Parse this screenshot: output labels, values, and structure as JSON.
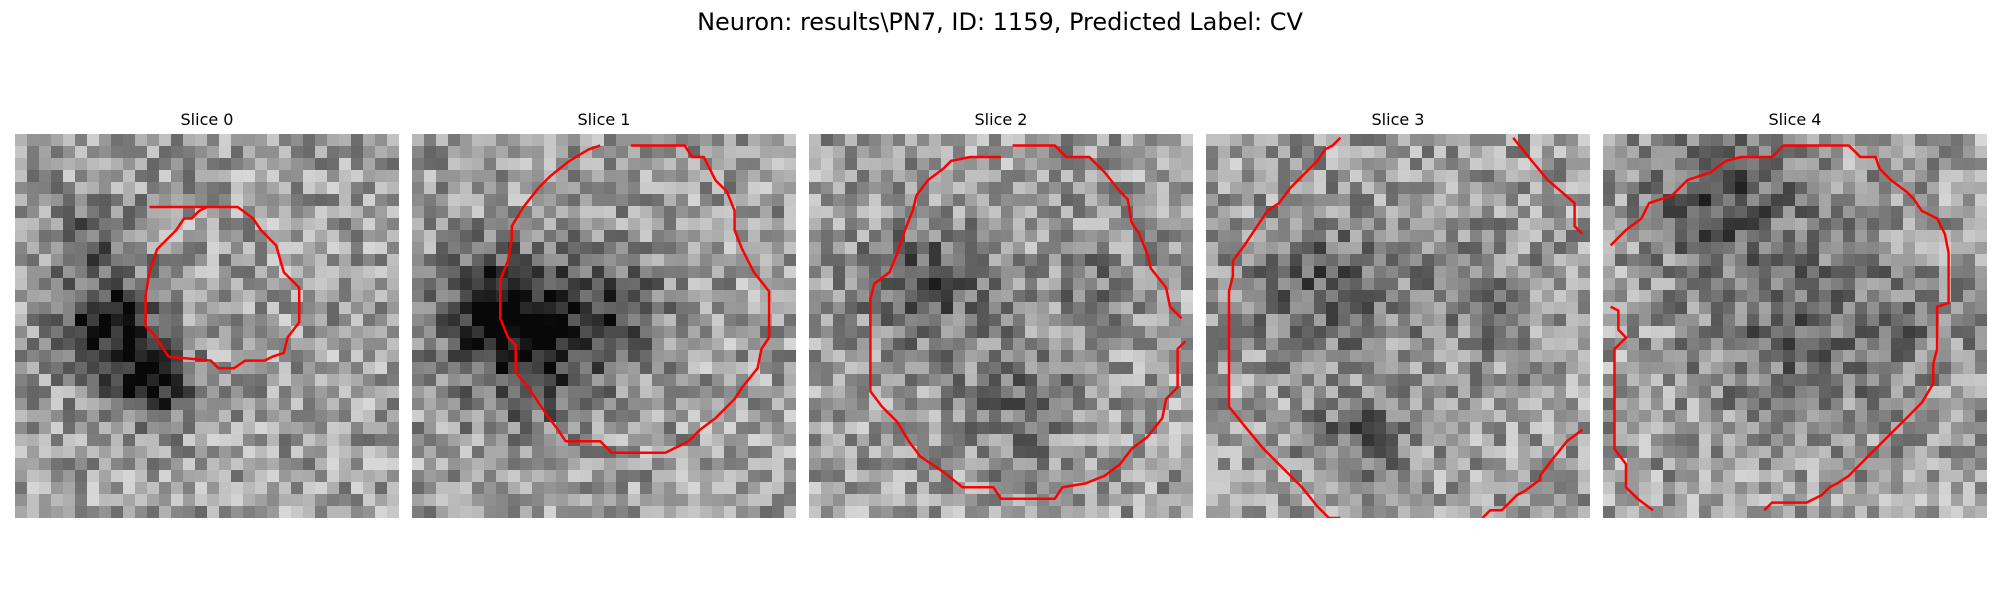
{
  "figure": {
    "suptitle": "Neuron: results\\PN7, ID: 1159, Predicted Label: CV"
  },
  "panels": [
    {
      "title": "Slice 0",
      "contours": [
        [
          [
            0.35,
            0.19
          ],
          [
            0.58,
            0.19
          ],
          [
            0.62,
            0.22
          ],
          [
            0.64,
            0.25
          ],
          [
            0.68,
            0.29
          ],
          [
            0.7,
            0.36
          ],
          [
            0.74,
            0.4
          ],
          [
            0.74,
            0.45
          ],
          [
            0.74,
            0.49
          ],
          [
            0.71,
            0.53
          ],
          [
            0.7,
            0.57
          ],
          [
            0.67,
            0.58
          ],
          [
            0.65,
            0.59
          ],
          [
            0.6,
            0.59
          ],
          [
            0.57,
            0.61
          ],
          [
            0.53,
            0.61
          ],
          [
            0.51,
            0.59
          ],
          [
            0.4,
            0.58
          ],
          [
            0.38,
            0.55
          ],
          [
            0.36,
            0.52
          ],
          [
            0.34,
            0.5
          ],
          [
            0.34,
            0.42
          ],
          [
            0.35,
            0.36
          ],
          [
            0.37,
            0.3
          ],
          [
            0.42,
            0.25
          ],
          [
            0.44,
            0.22
          ],
          [
            0.46,
            0.22
          ],
          [
            0.48,
            0.2
          ],
          [
            0.5,
            0.19
          ]
        ]
      ]
    },
    {
      "title": "Slice 1",
      "contours": [
        [
          [
            0.57,
            0.03
          ],
          [
            0.71,
            0.03
          ],
          [
            0.73,
            0.06
          ],
          [
            0.76,
            0.06
          ],
          [
            0.79,
            0.12
          ],
          [
            0.82,
            0.15
          ],
          [
            0.84,
            0.2
          ],
          [
            0.84,
            0.25
          ],
          [
            0.86,
            0.3
          ],
          [
            0.89,
            0.36
          ],
          [
            0.93,
            0.41
          ],
          [
            0.93,
            0.53
          ],
          [
            0.91,
            0.56
          ],
          [
            0.9,
            0.61
          ],
          [
            0.86,
            0.66
          ],
          [
            0.84,
            0.69
          ],
          [
            0.79,
            0.74
          ],
          [
            0.75,
            0.77
          ],
          [
            0.72,
            0.8
          ],
          [
            0.66,
            0.83
          ],
          [
            0.52,
            0.83
          ],
          [
            0.49,
            0.8
          ],
          [
            0.4,
            0.8
          ],
          [
            0.38,
            0.77
          ],
          [
            0.35,
            0.73
          ],
          [
            0.31,
            0.67
          ],
          [
            0.27,
            0.62
          ],
          [
            0.27,
            0.55
          ],
          [
            0.25,
            0.53
          ],
          [
            0.23,
            0.48
          ],
          [
            0.23,
            0.38
          ],
          [
            0.25,
            0.33
          ],
          [
            0.26,
            0.27
          ],
          [
            0.26,
            0.24
          ],
          [
            0.29,
            0.19
          ],
          [
            0.33,
            0.14
          ],
          [
            0.36,
            0.11
          ],
          [
            0.41,
            0.07
          ],
          [
            0.46,
            0.04
          ],
          [
            0.49,
            0.03
          ]
        ]
      ]
    },
    {
      "title": "Slice 2",
      "contours": [
        [
          [
            0.53,
            0.03
          ],
          [
            0.64,
            0.03
          ],
          [
            0.67,
            0.06
          ],
          [
            0.73,
            0.06
          ],
          [
            0.77,
            0.1
          ],
          [
            0.81,
            0.15
          ],
          [
            0.83,
            0.17
          ],
          [
            0.84,
            0.23
          ],
          [
            0.86,
            0.26
          ],
          [
            0.88,
            0.31
          ],
          [
            0.89,
            0.35
          ],
          [
            0.93,
            0.4
          ],
          [
            0.94,
            0.45
          ],
          [
            0.97,
            0.48
          ]
        ],
        [
          [
            0.98,
            0.54
          ],
          [
            0.96,
            0.56
          ],
          [
            0.96,
            0.66
          ],
          [
            0.93,
            0.69
          ],
          [
            0.92,
            0.74
          ],
          [
            0.88,
            0.79
          ],
          [
            0.84,
            0.82
          ],
          [
            0.81,
            0.86
          ],
          [
            0.77,
            0.89
          ],
          [
            0.72,
            0.91
          ],
          [
            0.66,
            0.92
          ],
          [
            0.64,
            0.95
          ],
          [
            0.5,
            0.95
          ],
          [
            0.48,
            0.92
          ],
          [
            0.4,
            0.92
          ],
          [
            0.35,
            0.88
          ],
          [
            0.29,
            0.84
          ],
          [
            0.26,
            0.8
          ],
          [
            0.23,
            0.75
          ],
          [
            0.19,
            0.71
          ],
          [
            0.16,
            0.67
          ],
          [
            0.16,
            0.43
          ],
          [
            0.17,
            0.39
          ],
          [
            0.21,
            0.36
          ],
          [
            0.23,
            0.31
          ],
          [
            0.25,
            0.25
          ],
          [
            0.27,
            0.2
          ],
          [
            0.28,
            0.16
          ],
          [
            0.31,
            0.12
          ],
          [
            0.35,
            0.09
          ],
          [
            0.37,
            0.07
          ],
          [
            0.42,
            0.06
          ],
          [
            0.5,
            0.06
          ]
        ]
      ]
    },
    {
      "title": "Slice 3",
      "contours": [
        [
          [
            0.35,
            0.01
          ],
          [
            0.33,
            0.03
          ],
          [
            0.31,
            0.04
          ],
          [
            0.29,
            0.07
          ],
          [
            0.25,
            0.11
          ],
          [
            0.22,
            0.14
          ],
          [
            0.19,
            0.18
          ],
          [
            0.16,
            0.2
          ],
          [
            0.12,
            0.26
          ],
          [
            0.1,
            0.29
          ],
          [
            0.07,
            0.33
          ],
          [
            0.07,
            0.37
          ],
          [
            0.06,
            0.41
          ],
          [
            0.06,
            0.71
          ],
          [
            0.1,
            0.76
          ],
          [
            0.15,
            0.82
          ],
          [
            0.2,
            0.87
          ],
          [
            0.25,
            0.92
          ],
          [
            0.29,
            0.97
          ],
          [
            0.32,
            1.0
          ],
          [
            0.35,
            1.0
          ]
        ],
        [
          [
            0.8,
            0.01
          ],
          [
            0.84,
            0.06
          ],
          [
            0.89,
            0.12
          ],
          [
            0.96,
            0.18
          ],
          [
            0.96,
            0.24
          ],
          [
            0.98,
            0.26
          ]
        ],
        [
          [
            0.98,
            0.77
          ],
          [
            0.94,
            0.8
          ],
          [
            0.9,
            0.85
          ],
          [
            0.87,
            0.89
          ],
          [
            0.87,
            0.9
          ],
          [
            0.83,
            0.93
          ],
          [
            0.81,
            0.94
          ],
          [
            0.79,
            0.96
          ],
          [
            0.77,
            0.98
          ],
          [
            0.74,
            0.98
          ],
          [
            0.72,
            1.0
          ]
        ]
      ]
    },
    {
      "title": "Slice 4",
      "contours": [
        [
          [
            0.02,
            0.29
          ],
          [
            0.06,
            0.25
          ],
          [
            0.1,
            0.22
          ],
          [
            0.12,
            0.18
          ],
          [
            0.18,
            0.16
          ],
          [
            0.22,
            0.12
          ],
          [
            0.28,
            0.1
          ],
          [
            0.32,
            0.07
          ],
          [
            0.36,
            0.06
          ],
          [
            0.4,
            0.06
          ],
          [
            0.44,
            0.06
          ],
          [
            0.47,
            0.03
          ],
          [
            0.64,
            0.03
          ],
          [
            0.67,
            0.06
          ],
          [
            0.71,
            0.06
          ],
          [
            0.72,
            0.09
          ],
          [
            0.75,
            0.12
          ],
          [
            0.79,
            0.15
          ],
          [
            0.81,
            0.17
          ],
          [
            0.83,
            0.2
          ],
          [
            0.87,
            0.22
          ],
          [
            0.89,
            0.26
          ],
          [
            0.9,
            0.31
          ],
          [
            0.9,
            0.35
          ],
          [
            0.9,
            0.4
          ],
          [
            0.9,
            0.44
          ],
          [
            0.87,
            0.45
          ],
          [
            0.87,
            0.56
          ],
          [
            0.86,
            0.6
          ],
          [
            0.86,
            0.65
          ],
          [
            0.83,
            0.7
          ],
          [
            0.79,
            0.74
          ],
          [
            0.76,
            0.77
          ],
          [
            0.72,
            0.81
          ],
          [
            0.68,
            0.85
          ],
          [
            0.64,
            0.89
          ],
          [
            0.61,
            0.91
          ],
          [
            0.59,
            0.92
          ],
          [
            0.57,
            0.94
          ],
          [
            0.53,
            0.96
          ],
          [
            0.44,
            0.96
          ],
          [
            0.42,
            0.98
          ]
        ],
        [
          [
            0.02,
            0.45
          ],
          [
            0.04,
            0.46
          ],
          [
            0.04,
            0.51
          ],
          [
            0.06,
            0.53
          ],
          [
            0.04,
            0.55
          ],
          [
            0.03,
            0.56
          ],
          [
            0.03,
            0.82
          ],
          [
            0.06,
            0.86
          ],
          [
            0.06,
            0.92
          ],
          [
            0.09,
            0.95
          ],
          [
            0.13,
            0.98
          ]
        ]
      ]
    }
  ]
}
